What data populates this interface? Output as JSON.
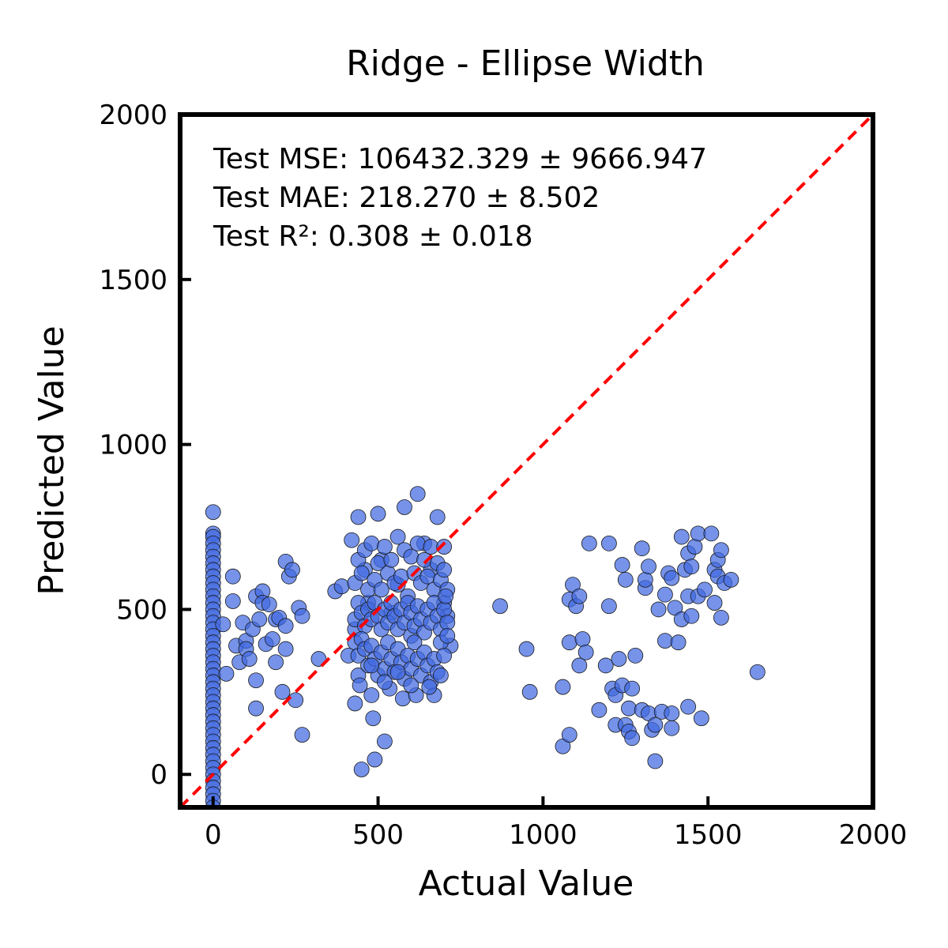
{
  "chart_data": {
    "type": "scatter",
    "title": "Ridge - Ellipse Width",
    "xlabel": "Actual Value",
    "ylabel": "Predicted Value",
    "xlim": [
      -100,
      2000
    ],
    "ylim": [
      -100,
      2000
    ],
    "xticks": [
      "0",
      "500",
      "1000",
      "1500",
      "2000"
    ],
    "yticks": [
      "0",
      "500",
      "1000",
      "1500",
      "2000"
    ],
    "xtick_values": [
      0,
      500,
      1000,
      1500,
      2000
    ],
    "ytick_values": [
      0,
      500,
      1000,
      1500,
      2000
    ],
    "reference_line": {
      "style": "dashed",
      "color": "#ff0000",
      "from": [
        -100,
        -100
      ],
      "to": [
        2000,
        2000
      ]
    },
    "annotations": [
      "Test MSE: 106432.329 ± 9666.947",
      "Test MAE: 218.270 ± 8.502",
      "Test R²: 0.308 ± 0.018"
    ],
    "point_color": "#4169e1",
    "edge_color": "#1a1a1a",
    "grid": false,
    "points": [
      [
        0,
        795
      ],
      [
        0,
        730
      ],
      [
        0,
        720
      ],
      [
        0,
        700
      ],
      [
        0,
        680
      ],
      [
        0,
        660
      ],
      [
        0,
        640
      ],
      [
        0,
        620
      ],
      [
        0,
        600
      ],
      [
        0,
        580
      ],
      [
        0,
        560
      ],
      [
        0,
        540
      ],
      [
        0,
        520
      ],
      [
        0,
        500
      ],
      [
        0,
        480
      ],
      [
        0,
        460
      ],
      [
        0,
        440
      ],
      [
        0,
        420
      ],
      [
        0,
        400
      ],
      [
        0,
        380
      ],
      [
        0,
        360
      ],
      [
        0,
        340
      ],
      [
        0,
        320
      ],
      [
        0,
        300
      ],
      [
        0,
        280
      ],
      [
        0,
        260
      ],
      [
        0,
        240
      ],
      [
        0,
        220
      ],
      [
        0,
        200
      ],
      [
        0,
        180
      ],
      [
        0,
        160
      ],
      [
        0,
        140
      ],
      [
        0,
        120
      ],
      [
        0,
        100
      ],
      [
        0,
        80
      ],
      [
        0,
        60
      ],
      [
        0,
        40
      ],
      [
        0,
        20
      ],
      [
        0,
        0
      ],
      [
        0,
        -20
      ],
      [
        0,
        -40
      ],
      [
        0,
        -60
      ],
      [
        0,
        -80
      ],
      [
        0,
        -100
      ],
      [
        30,
        455
      ],
      [
        40,
        305
      ],
      [
        60,
        600
      ],
      [
        60,
        525
      ],
      [
        70,
        390
      ],
      [
        80,
        340
      ],
      [
        90,
        460
      ],
      [
        100,
        405
      ],
      [
        100,
        380
      ],
      [
        110,
        350
      ],
      [
        120,
        440
      ],
      [
        130,
        540
      ],
      [
        130,
        285
      ],
      [
        130,
        200
      ],
      [
        140,
        470
      ],
      [
        150,
        555
      ],
      [
        150,
        520
      ],
      [
        160,
        395
      ],
      [
        170,
        515
      ],
      [
        180,
        410
      ],
      [
        190,
        470
      ],
      [
        190,
        340
      ],
      [
        200,
        475
      ],
      [
        210,
        250
      ],
      [
        220,
        645
      ],
      [
        220,
        450
      ],
      [
        220,
        380
      ],
      [
        230,
        600
      ],
      [
        240,
        620
      ],
      [
        250,
        225
      ],
      [
        260,
        505
      ],
      [
        270,
        480
      ],
      [
        270,
        120
      ],
      [
        320,
        350
      ],
      [
        370,
        555
      ],
      [
        390,
        570
      ],
      [
        410,
        360
      ],
      [
        420,
        710
      ],
      [
        430,
        440
      ],
      [
        430,
        215
      ],
      [
        440,
        780
      ],
      [
        440,
        300
      ],
      [
        450,
        15
      ],
      [
        460,
        620
      ],
      [
        470,
        520
      ],
      [
        480,
        240
      ],
      [
        490,
        45
      ],
      [
        500,
        790
      ],
      [
        510,
        650
      ],
      [
        520,
        100
      ],
      [
        540,
        490
      ],
      [
        560,
        575
      ],
      [
        580,
        810
      ],
      [
        600,
        420
      ],
      [
        620,
        850
      ],
      [
        640,
        700
      ],
      [
        660,
        620
      ],
      [
        670,
        240
      ],
      [
        680,
        780
      ],
      [
        700,
        520
      ],
      [
        710,
        480
      ],
      [
        720,
        390
      ],
      [
        430,
        580
      ],
      [
        440,
        650
      ],
      [
        450,
        610
      ],
      [
        460,
        680
      ],
      [
        470,
        560
      ],
      [
        480,
        700
      ],
      [
        490,
        590
      ],
      [
        500,
        640
      ],
      [
        510,
        560
      ],
      [
        520,
        690
      ],
      [
        530,
        610
      ],
      [
        540,
        650
      ],
      [
        550,
        580
      ],
      [
        560,
        720
      ],
      [
        570,
        600
      ],
      [
        580,
        680
      ],
      [
        590,
        540
      ],
      [
        600,
        660
      ],
      [
        610,
        610
      ],
      [
        620,
        700
      ],
      [
        630,
        580
      ],
      [
        640,
        650
      ],
      [
        650,
        600
      ],
      [
        660,
        690
      ],
      [
        670,
        560
      ],
      [
        680,
        640
      ],
      [
        690,
        590
      ],
      [
        700,
        620
      ],
      [
        710,
        560
      ],
      [
        700,
        690
      ],
      [
        430,
        470
      ],
      [
        440,
        520
      ],
      [
        450,
        490
      ],
      [
        460,
        450
      ],
      [
        470,
        500
      ],
      [
        480,
        470
      ],
      [
        490,
        520
      ],
      [
        500,
        480
      ],
      [
        510,
        440
      ],
      [
        520,
        500
      ],
      [
        530,
        460
      ],
      [
        540,
        520
      ],
      [
        550,
        480
      ],
      [
        560,
        440
      ],
      [
        570,
        500
      ],
      [
        580,
        460
      ],
      [
        590,
        520
      ],
      [
        600,
        490
      ],
      [
        610,
        450
      ],
      [
        620,
        510
      ],
      [
        630,
        470
      ],
      [
        640,
        430
      ],
      [
        650,
        500
      ],
      [
        660,
        460
      ],
      [
        670,
        520
      ],
      [
        680,
        480
      ],
      [
        690,
        440
      ],
      [
        700,
        500
      ],
      [
        710,
        460
      ],
      [
        705,
        540
      ],
      [
        430,
        400
      ],
      [
        440,
        360
      ],
      [
        450,
        410
      ],
      [
        460,
        380
      ],
      [
        470,
        330
      ],
      [
        480,
        390
      ],
      [
        490,
        350
      ],
      [
        500,
        300
      ],
      [
        510,
        370
      ],
      [
        520,
        320
      ],
      [
        530,
        400
      ],
      [
        540,
        350
      ],
      [
        550,
        310
      ],
      [
        560,
        380
      ],
      [
        570,
        340
      ],
      [
        580,
        290
      ],
      [
        590,
        360
      ],
      [
        600,
        320
      ],
      [
        610,
        400
      ],
      [
        620,
        350
      ],
      [
        630,
        300
      ],
      [
        640,
        370
      ],
      [
        650,
        330
      ],
      [
        660,
        280
      ],
      [
        670,
        350
      ],
      [
        680,
        310
      ],
      [
        690,
        400
      ],
      [
        700,
        360
      ],
      [
        710,
        420
      ],
      [
        655,
        265
      ],
      [
        445,
        270
      ],
      [
        485,
        170
      ],
      [
        535,
        260
      ],
      [
        575,
        230
      ],
      [
        615,
        240
      ],
      [
        690,
        300
      ],
      [
        600,
        270
      ],
      [
        560,
        310
      ],
      [
        520,
        280
      ],
      [
        480,
        330
      ],
      [
        870,
        510
      ],
      [
        950,
        380
      ],
      [
        960,
        250
      ],
      [
        1060,
        265
      ],
      [
        1060,
        85
      ],
      [
        1080,
        120
      ],
      [
        1080,
        530
      ],
      [
        1080,
        400
      ],
      [
        1090,
        575
      ],
      [
        1100,
        510
      ],
      [
        1110,
        540
      ],
      [
        1110,
        330
      ],
      [
        1120,
        410
      ],
      [
        1130,
        370
      ],
      [
        1140,
        700
      ],
      [
        1170,
        195
      ],
      [
        1190,
        330
      ],
      [
        1200,
        510
      ],
      [
        1200,
        700
      ],
      [
        1210,
        260
      ],
      [
        1220,
        150
      ],
      [
        1220,
        240
      ],
      [
        1230,
        350
      ],
      [
        1240,
        270
      ],
      [
        1240,
        635
      ],
      [
        1250,
        590
      ],
      [
        1250,
        150
      ],
      [
        1260,
        200
      ],
      [
        1260,
        130
      ],
      [
        1270,
        110
      ],
      [
        1270,
        260
      ],
      [
        1280,
        360
      ],
      [
        1300,
        195
      ],
      [
        1300,
        685
      ],
      [
        1310,
        565
      ],
      [
        1310,
        590
      ],
      [
        1320,
        630
      ],
      [
        1320,
        185
      ],
      [
        1330,
        135
      ],
      [
        1340,
        150
      ],
      [
        1340,
        40
      ],
      [
        1350,
        500
      ],
      [
        1360,
        190
      ],
      [
        1370,
        405
      ],
      [
        1370,
        545
      ],
      [
        1380,
        610
      ],
      [
        1390,
        140
      ],
      [
        1390,
        595
      ],
      [
        1390,
        185
      ],
      [
        1400,
        505
      ],
      [
        1410,
        400
      ],
      [
        1420,
        720
      ],
      [
        1420,
        470
      ],
      [
        1430,
        620
      ],
      [
        1440,
        670
      ],
      [
        1440,
        540
      ],
      [
        1440,
        205
      ],
      [
        1450,
        480
      ],
      [
        1450,
        630
      ],
      [
        1460,
        690
      ],
      [
        1470,
        730
      ],
      [
        1470,
        540
      ],
      [
        1480,
        170
      ],
      [
        1490,
        560
      ],
      [
        1510,
        730
      ],
      [
        1520,
        520
      ],
      [
        1520,
        620
      ],
      [
        1530,
        650
      ],
      [
        1530,
        600
      ],
      [
        1540,
        680
      ],
      [
        1540,
        475
      ],
      [
        1550,
        580
      ],
      [
        1570,
        590
      ],
      [
        1650,
        310
      ]
    ]
  }
}
